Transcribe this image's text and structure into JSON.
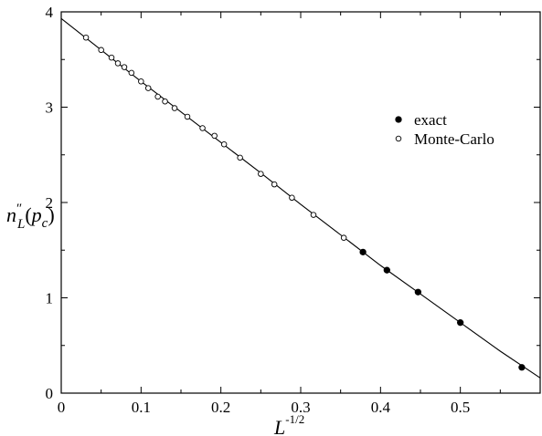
{
  "chart_data": {
    "type": "scatter",
    "xlim": [
      0,
      0.6
    ],
    "ylim": [
      0,
      4
    ],
    "x_ticks": [
      "0",
      "0.1",
      "0.2",
      "0.3",
      "0.4",
      "0.5"
    ],
    "y_ticks": [
      "0",
      "1",
      "2",
      "3",
      "4"
    ],
    "grid": false,
    "legend_position": "top-right",
    "xlabel": {
      "main": "L",
      "sup": "-1/2"
    },
    "ylabel": {
      "main": "n",
      "sup": "″",
      "sub": "L",
      "paren_open": "(",
      "arg": "p",
      "arg_sub": "c",
      "paren_close": ")"
    },
    "series": [
      {
        "name": "exact",
        "marker": "filled-circle",
        "color": "#000000",
        "x": [
          0.378,
          0.408,
          0.447,
          0.5,
          0.577
        ],
        "y": [
          1.48,
          1.29,
          1.06,
          0.74,
          0.27
        ]
      },
      {
        "name": "Monte-Carlo",
        "marker": "open-circle",
        "color": "#000000",
        "x": [
          0.031,
          0.05,
          0.063,
          0.071,
          0.079,
          0.088,
          0.1,
          0.109,
          0.121,
          0.13,
          0.142,
          0.158,
          0.177,
          0.192,
          0.204,
          0.224,
          0.25,
          0.267,
          0.289,
          0.316,
          0.354
        ],
        "y": [
          3.73,
          3.6,
          3.52,
          3.46,
          3.42,
          3.36,
          3.27,
          3.2,
          3.11,
          3.06,
          2.99,
          2.9,
          2.78,
          2.7,
          2.61,
          2.47,
          2.3,
          2.19,
          2.05,
          1.87,
          1.63
        ]
      },
      {
        "name": "",
        "marker": "line",
        "color": "#000000",
        "x": [
          0,
          0.05,
          0.1,
          0.15,
          0.2,
          0.25,
          0.3,
          0.35,
          0.4,
          0.45,
          0.5,
          0.55,
          0.6
        ],
        "y": [
          3.93,
          3.6,
          3.27,
          2.95,
          2.63,
          2.31,
          1.98,
          1.66,
          1.34,
          1.04,
          0.74,
          0.44,
          0.16
        ]
      }
    ]
  }
}
